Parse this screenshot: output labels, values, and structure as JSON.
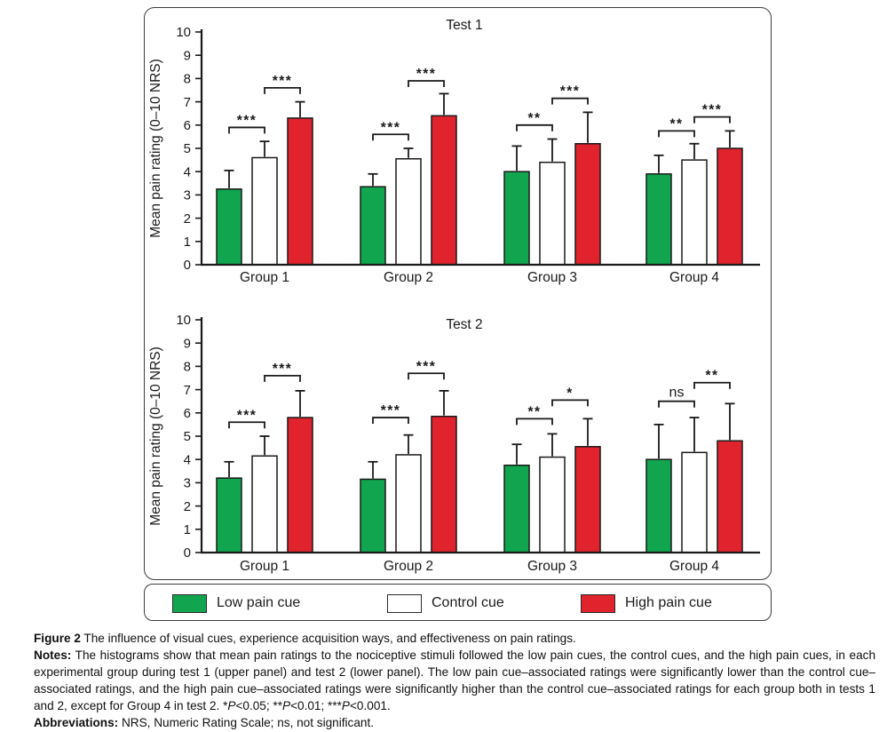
{
  "chart_data": [
    {
      "type": "bar",
      "title": "Test 1",
      "categories": [
        "Group 1",
        "Group 2",
        "Group 3",
        "Group 4"
      ],
      "series": [
        {
          "name": "Low pain cue",
          "color": "#10A54E",
          "values": [
            3.25,
            3.35,
            4.0,
            3.9
          ],
          "errors": [
            0.8,
            0.55,
            1.1,
            0.8
          ]
        },
        {
          "name": "Control cue",
          "color": "#FFFFFF",
          "values": [
            4.6,
            4.55,
            4.4,
            4.5
          ],
          "errors": [
            0.7,
            0.45,
            1.0,
            0.7
          ]
        },
        {
          "name": "High pain cue",
          "color": "#E0232C",
          "values": [
            6.3,
            6.4,
            5.2,
            5.0
          ],
          "errors": [
            0.7,
            0.95,
            1.35,
            0.75
          ]
        }
      ],
      "ylabel": "Mean pain rating (0–10 NRS)",
      "xlabel": "",
      "ylim": [
        0,
        10
      ],
      "yticks": [
        0,
        1,
        2,
        3,
        4,
        5,
        6,
        7,
        8,
        9,
        10
      ],
      "grid": false,
      "comparisons": [
        {
          "group": 0,
          "bars": [
            0,
            1
          ],
          "label": "***",
          "height": 5.9
        },
        {
          "group": 0,
          "bars": [
            1,
            2
          ],
          "label": "***",
          "height": 7.6
        },
        {
          "group": 1,
          "bars": [
            0,
            1
          ],
          "label": "***",
          "height": 5.6
        },
        {
          "group": 1,
          "bars": [
            1,
            2
          ],
          "label": "***",
          "height": 7.9
        },
        {
          "group": 2,
          "bars": [
            0,
            1
          ],
          "label": "**",
          "height": 6.0
        },
        {
          "group": 2,
          "bars": [
            1,
            2
          ],
          "label": "***",
          "height": 7.15
        },
        {
          "group": 3,
          "bars": [
            0,
            1
          ],
          "label": "**",
          "height": 5.75
        },
        {
          "group": 3,
          "bars": [
            1,
            2
          ],
          "label": "***",
          "height": 6.35
        }
      ]
    },
    {
      "type": "bar",
      "title": "Test 2",
      "categories": [
        "Group 1",
        "Group 2",
        "Group 3",
        "Group 4"
      ],
      "series": [
        {
          "name": "Low pain cue",
          "color": "#10A54E",
          "values": [
            3.2,
            3.15,
            3.75,
            4.0
          ],
          "errors": [
            0.7,
            0.75,
            0.9,
            1.5
          ]
        },
        {
          "name": "Control cue",
          "color": "#FFFFFF",
          "values": [
            4.15,
            4.2,
            4.1,
            4.3
          ],
          "errors": [
            0.85,
            0.85,
            1.0,
            1.5
          ]
        },
        {
          "name": "High pain cue",
          "color": "#E0232C",
          "values": [
            5.8,
            5.85,
            4.55,
            4.8
          ],
          "errors": [
            1.15,
            1.1,
            1.2,
            1.6
          ]
        }
      ],
      "ylabel": "Mean pain rating (0–10 NRS)",
      "xlabel": "",
      "ylim": [
        0,
        10
      ],
      "yticks": [
        0,
        1,
        2,
        3,
        4,
        5,
        6,
        7,
        8,
        9,
        10
      ],
      "grid": false,
      "comparisons": [
        {
          "group": 0,
          "bars": [
            0,
            1
          ],
          "label": "***",
          "height": 5.6
        },
        {
          "group": 0,
          "bars": [
            1,
            2
          ],
          "label": "***",
          "height": 7.6
        },
        {
          "group": 1,
          "bars": [
            0,
            1
          ],
          "label": "***",
          "height": 5.8
        },
        {
          "group": 1,
          "bars": [
            1,
            2
          ],
          "label": "***",
          "height": 7.7
        },
        {
          "group": 2,
          "bars": [
            0,
            1
          ],
          "label": "**",
          "height": 5.75
        },
        {
          "group": 2,
          "bars": [
            1,
            2
          ],
          "label": "*",
          "height": 6.55
        },
        {
          "group": 3,
          "bars": [
            0,
            1
          ],
          "label": "ns",
          "height": 6.5
        },
        {
          "group": 3,
          "bars": [
            1,
            2
          ],
          "label": "**",
          "height": 7.3
        }
      ]
    }
  ],
  "legend": {
    "items": [
      {
        "label": "Low pain cue",
        "color": "#10A54E"
      },
      {
        "label": "Control cue",
        "color": "#FFFFFF"
      },
      {
        "label": "High pain cue",
        "color": "#E0232C"
      }
    ]
  },
  "caption": {
    "paragraphs": [
      {
        "justify": false,
        "segments": [
          {
            "t": "Figure 2",
            "b": true
          },
          {
            "t": " The influence of visual cues, experience acquisition ways, and effectiveness on pain ratings."
          }
        ]
      },
      {
        "justify": true,
        "segments": [
          {
            "t": "Notes:",
            "b": true
          },
          {
            "t": " The histograms show that mean pain ratings to the nociceptive stimuli followed the low pain cues, the control cues, and the high pain cues, in each experimental group during test 1 (upper panel) and test 2 (lower panel). The low pain cue–associated ratings were significantly lower than the control cue–associated ratings, and the high pain cue–associated ratings were significantly higher than the control cue–associated ratings for each group both in tests 1 and 2, except for Group 4 in test 2. *"
          },
          {
            "t": "P",
            "i": true
          },
          {
            "t": "<0.05; **"
          },
          {
            "t": "P",
            "i": true
          },
          {
            "t": "<0.01; ***"
          },
          {
            "t": "P",
            "i": true
          },
          {
            "t": "<0.001."
          }
        ]
      },
      {
        "justify": false,
        "segments": [
          {
            "t": "Abbreviations:",
            "b": true
          },
          {
            "t": " NRS, Numeric Rating Scale; ns, not significant."
          }
        ]
      }
    ]
  },
  "style": {
    "ink": "#1a1a1a",
    "bar_stroke": "#1a1a1a",
    "box_border": "#3d3d3d"
  }
}
